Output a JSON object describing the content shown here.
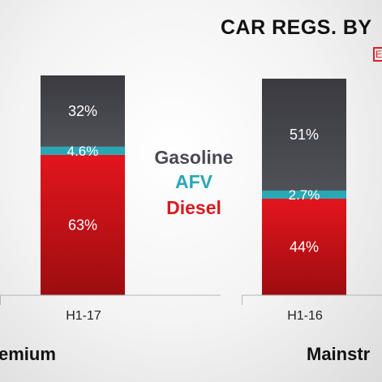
{
  "header": {
    "title": "CAR REGS. BY",
    "brand_mark": "E"
  },
  "legend": {
    "items": [
      {
        "label": "Gasoline",
        "color": "#4a4a52"
      },
      {
        "label": "AFV",
        "color": "#2aa7b5"
      },
      {
        "label": "Diesel",
        "color": "#d71920"
      }
    ]
  },
  "groups": [
    {
      "label": "emium"
    },
    {
      "label": "Mainstr"
    }
  ],
  "chart_data": {
    "type": "bar",
    "stacked": true,
    "categories": [
      "H1-17",
      "H1-16"
    ],
    "series": [
      {
        "name": "Diesel",
        "values": [
          63,
          44
        ],
        "labels": [
          "63%",
          "44%"
        ],
        "color": "#d71920"
      },
      {
        "name": "AFV",
        "values": [
          4.6,
          2.7
        ],
        "labels": [
          "4.6%",
          "2.7%"
        ],
        "color": "#2aa7b5"
      },
      {
        "name": "Gasoline",
        "values": [
          32,
          51
        ],
        "labels": [
          "32%",
          "51%"
        ],
        "color": "#4a4a52"
      }
    ],
    "ylim": [
      0,
      100
    ],
    "legend": "center",
    "grid": false
  }
}
